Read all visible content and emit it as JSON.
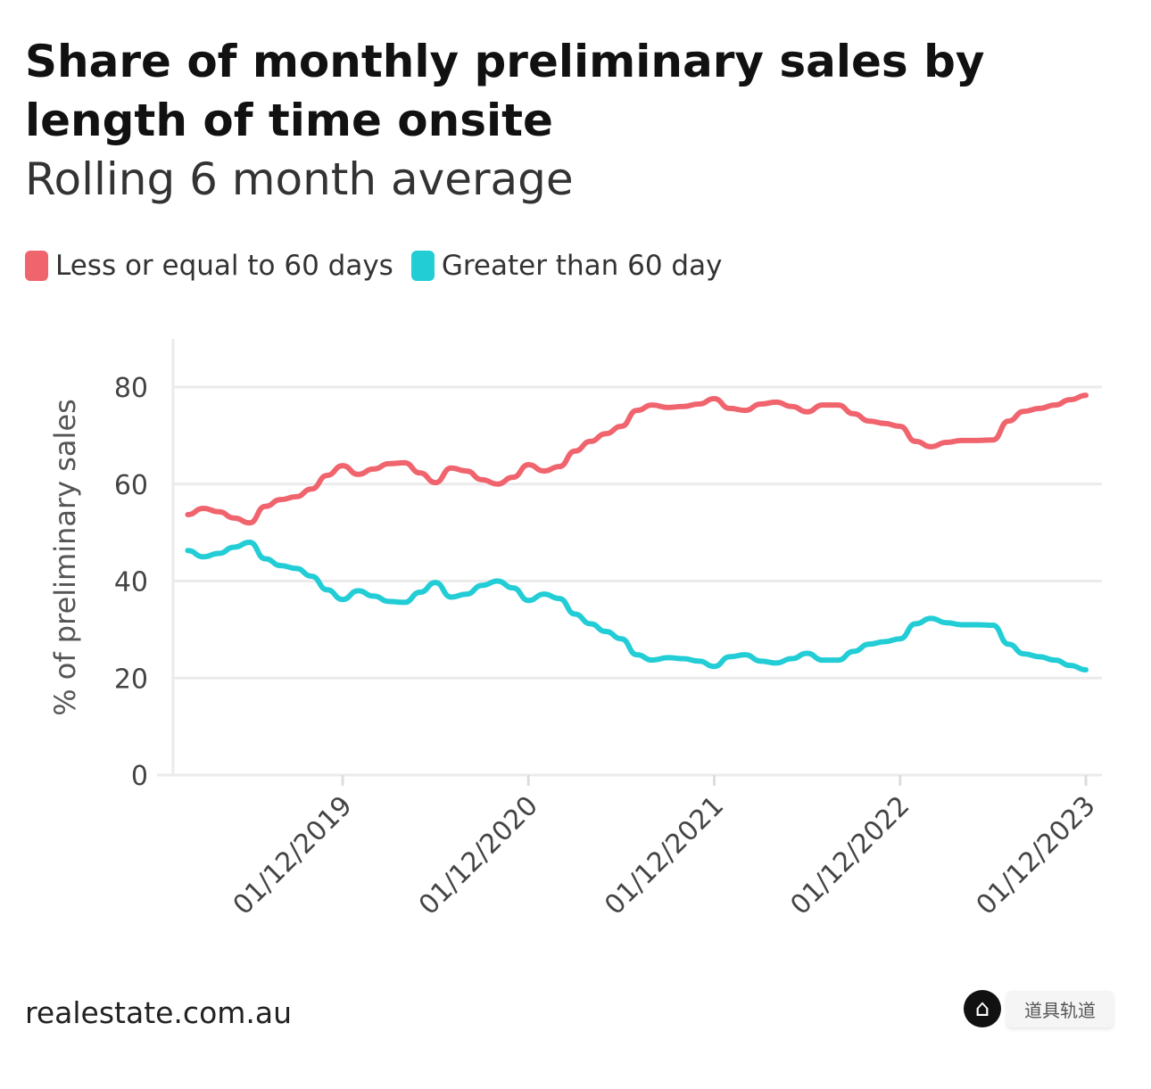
{
  "chart_data": {
    "type": "line",
    "title": "Share of monthly preliminary sales by length of time onsite",
    "subtitle": "Rolling 6 month average",
    "ylabel": "% of preliminary sales",
    "xlabel": "",
    "ylim": [
      0,
      90
    ],
    "yticks": [
      0,
      20,
      40,
      60,
      80
    ],
    "xticks": [
      "01/12/2019",
      "01/12/2020",
      "01/12/2021",
      "01/12/2022",
      "01/12/2023"
    ],
    "grid": "horizontal",
    "legend_position": "top-left",
    "x": [
      "2019-02",
      "2019-03",
      "2019-04",
      "2019-05",
      "2019-06",
      "2019-07",
      "2019-08",
      "2019-09",
      "2019-10",
      "2019-11",
      "2019-12",
      "2020-01",
      "2020-02",
      "2020-03",
      "2020-04",
      "2020-05",
      "2020-06",
      "2020-07",
      "2020-08",
      "2020-09",
      "2020-10",
      "2020-11",
      "2020-12",
      "2021-01",
      "2021-02",
      "2021-03",
      "2021-04",
      "2021-05",
      "2021-06",
      "2021-07",
      "2021-08",
      "2021-09",
      "2021-10",
      "2021-11",
      "2021-12",
      "2022-01",
      "2022-02",
      "2022-03",
      "2022-04",
      "2022-05",
      "2022-06",
      "2022-07",
      "2022-08",
      "2022-09",
      "2022-10",
      "2022-11",
      "2022-12",
      "2023-01",
      "2023-02",
      "2023-03",
      "2023-04",
      "2023-05",
      "2023-06",
      "2023-07",
      "2023-08",
      "2023-09",
      "2023-10",
      "2023-11",
      "2023-12"
    ],
    "series": [
      {
        "name": "Less or equal to 60 days",
        "color": "#f0646e",
        "values": [
          53.7,
          55.0,
          54.3,
          53.0,
          52.0,
          55.4,
          56.8,
          57.4,
          59.0,
          61.8,
          63.8,
          62.0,
          63.1,
          64.2,
          64.4,
          62.3,
          60.3,
          63.3,
          62.7,
          60.9,
          60.0,
          61.4,
          64.0,
          62.7,
          63.6,
          66.8,
          68.8,
          70.4,
          71.9,
          75.2,
          76.3,
          75.8,
          76.0,
          76.5,
          77.6,
          75.6,
          75.2,
          76.5,
          76.9,
          76.0,
          74.9,
          76.3,
          76.3,
          74.5,
          73.0,
          72.5,
          71.9,
          68.8,
          67.7,
          68.6,
          69.0,
          69.0,
          69.1,
          73.0,
          75.0,
          75.6,
          76.3,
          77.4,
          78.3
        ]
      },
      {
        "name": "Greater than 60 day",
        "color": "#22cdd6",
        "values": [
          46.3,
          45.0,
          45.7,
          47.0,
          48.0,
          44.6,
          43.2,
          42.6,
          41.0,
          38.2,
          36.2,
          38.0,
          36.9,
          35.8,
          35.6,
          37.7,
          39.7,
          36.7,
          37.3,
          39.1,
          40.0,
          38.6,
          36.0,
          37.3,
          36.4,
          33.2,
          31.2,
          29.6,
          28.1,
          24.8,
          23.7,
          24.2,
          24.0,
          23.5,
          22.4,
          24.4,
          24.8,
          23.5,
          23.1,
          24.0,
          25.1,
          23.7,
          23.7,
          25.5,
          27.0,
          27.5,
          28.1,
          31.2,
          32.3,
          31.4,
          31.0,
          31.0,
          30.9,
          27.0,
          25.0,
          24.4,
          23.7,
          22.6,
          21.7
        ]
      }
    ]
  },
  "source": "realestate.com.au",
  "watermark": {
    "icon": "home-icon",
    "text": "道具轨道"
  }
}
